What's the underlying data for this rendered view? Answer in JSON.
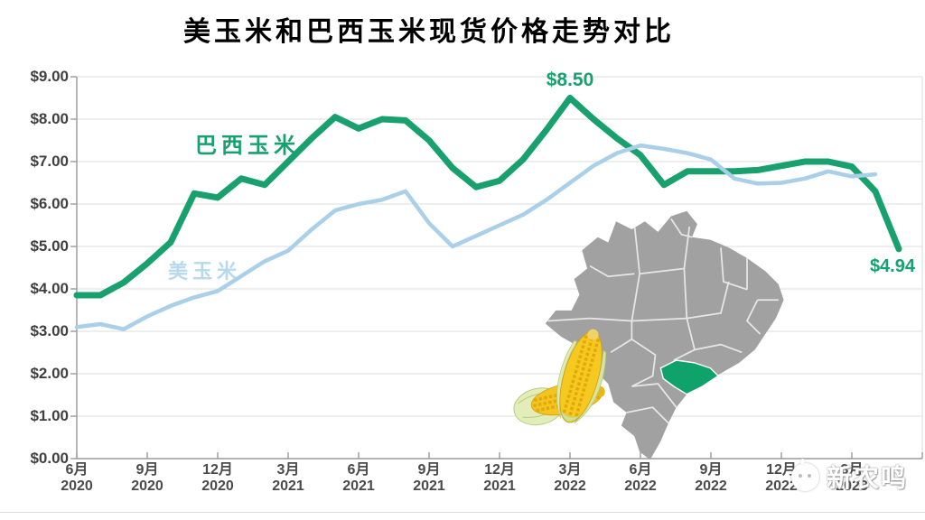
{
  "page": {
    "title": "美玉米和巴西玉米现货价格走势对比"
  },
  "watermark": {
    "text": "新农鸣",
    "icon": "chick-logo-icon"
  },
  "decorations": {
    "brazil_map": {
      "fill": "#a1a1a1",
      "border_color": "#ffffff",
      "highlight_state_color": "#0fa36b"
    },
    "corn_image": {
      "kernel_color": "#f4c51e",
      "husk_color": "#e0ecba"
    }
  },
  "chart_data": {
    "type": "line",
    "title": "美玉米和巴西玉米现货价格走势对比",
    "x_unit": "month",
    "x_start": "2020-06",
    "x_step_months": 1,
    "grid": "horizontal",
    "legend": "inline-labels",
    "y_axis": {
      "min": 0,
      "max": 9,
      "step": 1,
      "tick_labels": [
        "$9.00",
        "$8.00",
        "$7.00",
        "$6.00",
        "$5.00",
        "$4.00",
        "$3.00",
        "$2.00",
        "$1.00",
        "$0.00"
      ]
    },
    "x_ticks": [
      {
        "month": "6月",
        "year": "2020"
      },
      {
        "month": "9月",
        "year": "2020"
      },
      {
        "month": "12月",
        "year": "2020"
      },
      {
        "month": "3月",
        "year": "2021"
      },
      {
        "month": "6月",
        "year": "2021"
      },
      {
        "month": "9月",
        "year": "2021"
      },
      {
        "month": "12月",
        "year": "2021"
      },
      {
        "month": "3月",
        "year": "2022"
      },
      {
        "month": "6月",
        "year": "2022"
      },
      {
        "month": "9月",
        "year": "2022"
      },
      {
        "month": "12月",
        "year": "2022"
      },
      {
        "month": "3月",
        "year": "2023"
      }
    ],
    "series": [
      {
        "name": "巴西玉米",
        "color": "#18a16f",
        "line_width": 7,
        "values": [
          3.85,
          3.85,
          4.15,
          4.6,
          5.1,
          6.25,
          6.15,
          6.6,
          6.45,
          7.0,
          7.55,
          8.05,
          7.78,
          8.0,
          7.97,
          7.5,
          6.85,
          6.4,
          6.55,
          7.05,
          7.75,
          8.5,
          8.0,
          7.55,
          7.15,
          6.45,
          6.77,
          6.77,
          6.77,
          6.8,
          6.9,
          7.0,
          7.0,
          6.88,
          6.3,
          4.94
        ]
      },
      {
        "name": "美玉米",
        "color": "#a9cfe9",
        "line_width": 4.5,
        "values": [
          3.1,
          3.17,
          3.05,
          3.35,
          3.6,
          3.8,
          3.95,
          4.3,
          4.65,
          4.9,
          5.4,
          5.85,
          6.0,
          6.1,
          6.3,
          5.55,
          5.0,
          5.25,
          5.5,
          5.75,
          6.1,
          6.5,
          6.9,
          7.2,
          7.38,
          7.3,
          7.2,
          7.05,
          6.6,
          6.48,
          6.5,
          6.6,
          6.77,
          6.65,
          6.7
        ]
      }
    ],
    "annotations": [
      {
        "text": "$8.50",
        "series": "巴西玉米",
        "month": "2022-03",
        "value": 8.5
      },
      {
        "text": "$4.94",
        "series": "巴西玉米",
        "month": "2023-05",
        "value": 4.94
      }
    ]
  }
}
